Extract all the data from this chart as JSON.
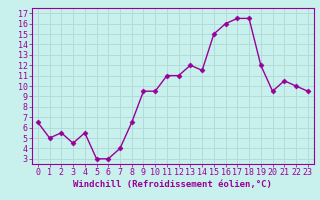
{
  "x": [
    0,
    1,
    2,
    3,
    4,
    5,
    6,
    7,
    8,
    9,
    10,
    11,
    12,
    13,
    14,
    15,
    16,
    17,
    18,
    19,
    20,
    21,
    22,
    23
  ],
  "y": [
    6.5,
    5.0,
    5.5,
    4.5,
    5.5,
    3.0,
    3.0,
    4.0,
    6.5,
    9.5,
    9.5,
    11.0,
    11.0,
    12.0,
    11.5,
    15.0,
    16.0,
    16.5,
    16.5,
    12.0,
    9.5,
    10.5,
    10.0,
    9.5
  ],
  "line_color": "#990099",
  "marker": "D",
  "marker_size": 2.5,
  "linewidth": 1.0,
  "xlabel": "Windchill (Refroidissement éolien,°C)",
  "xlim": [
    -0.5,
    23.5
  ],
  "ylim": [
    2.5,
    17.5
  ],
  "yticks": [
    3,
    4,
    5,
    6,
    7,
    8,
    9,
    10,
    11,
    12,
    13,
    14,
    15,
    16,
    17
  ],
  "xticks": [
    0,
    1,
    2,
    3,
    4,
    5,
    6,
    7,
    8,
    9,
    10,
    11,
    12,
    13,
    14,
    15,
    16,
    17,
    18,
    19,
    20,
    21,
    22,
    23
  ],
  "background_color": "#c8f0ec",
  "grid_color": "#b0d8d4",
  "tick_color": "#990099",
  "label_color": "#990099",
  "xlabel_fontsize": 6.5,
  "tick_fontsize": 6.0,
  "spine_color": "#990099"
}
